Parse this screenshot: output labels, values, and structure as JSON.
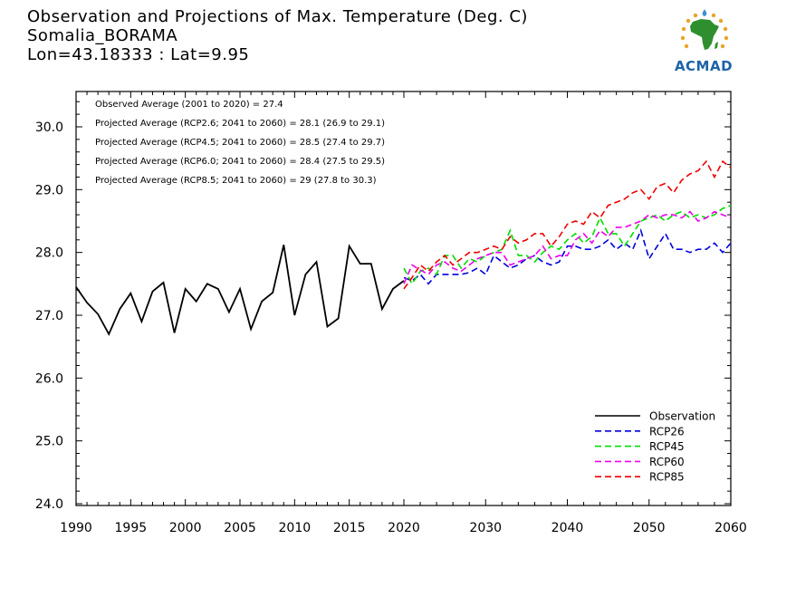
{
  "title_lines": [
    "Observation and Projections of Max. Temperature (Deg. C)",
    "Somalia_BORAMA",
    "Lon=43.18333 : Lat=9.95"
  ],
  "logo": {
    "text": "ACMAD",
    "icon": "africa-map-icon"
  },
  "annotations": [
    "Observed Average (2001 to 2020) = 27.4",
    "Projected Average (RCP2.6; 2041 to 2060) = 28.1 (26.9 to 29.1)",
    "Projected Average (RCP4.5; 2041 to 2060) = 28.5 (27.4 to 29.7)",
    "Projected Average (RCP6.0; 2041 to 2060) = 28.4 (27.5 to 29.5)",
    "Projected Average (RCP8.5; 2041 to 2060) = 29 (27.8 to 30.3)"
  ],
  "chart_data": {
    "type": "line",
    "title": "Observation and Projections of Max. Temperature (Deg. C)",
    "xlim": [
      1990,
      2060
    ],
    "ylim": [
      24.0,
      30.6
    ],
    "x_ticks": [
      1990,
      1995,
      2000,
      2005,
      2010,
      2015,
      2020,
      2030,
      2040,
      2050,
      2060
    ],
    "y_ticks": [
      24.0,
      25.0,
      26.0,
      27.0,
      28.0,
      29.0,
      30.0
    ],
    "y_tick_labels": [
      "24.0",
      "25.0",
      "26.0",
      "27.0",
      "28.0",
      "29.0",
      "30.0"
    ],
    "legend_position": "bottom-right",
    "series": [
      {
        "name": "Observation",
        "color": "#000000",
        "dash": false,
        "x": [
          1990,
          1991,
          1992,
          1993,
          1994,
          1995,
          1996,
          1997,
          1998,
          1999,
          2000,
          2001,
          2002,
          2003,
          2004,
          2005,
          2006,
          2007,
          2008,
          2009,
          2010,
          2011,
          2012,
          2013,
          2014,
          2015,
          2016,
          2017,
          2018,
          2019,
          2020
        ],
        "y": [
          27.45,
          27.2,
          27.02,
          26.7,
          27.1,
          27.35,
          26.9,
          27.38,
          27.52,
          26.72,
          27.42,
          27.22,
          27.5,
          27.42,
          27.05,
          27.42,
          26.78,
          27.22,
          27.36,
          28.12,
          27.0,
          27.65,
          27.85,
          26.82,
          26.95,
          28.1,
          27.82,
          27.82,
          27.1,
          27.42,
          27.55
        ]
      },
      {
        "name": "RCP26",
        "color": "#0000dd",
        "dash": true,
        "x": [
          2020,
          2021,
          2022,
          2023,
          2024,
          2025,
          2026,
          2027,
          2028,
          2029,
          2030,
          2031,
          2032,
          2033,
          2034,
          2035,
          2036,
          2037,
          2038,
          2039,
          2040,
          2041,
          2042,
          2043,
          2044,
          2045,
          2046,
          2047,
          2048,
          2049,
          2050,
          2051,
          2052,
          2053,
          2054,
          2055,
          2056,
          2057,
          2058,
          2059,
          2060
        ],
        "y": [
          27.6,
          27.55,
          27.65,
          27.5,
          27.65,
          27.65,
          27.65,
          27.65,
          27.68,
          27.75,
          27.65,
          27.95,
          27.85,
          27.75,
          27.8,
          27.9,
          27.95,
          27.85,
          27.8,
          27.85,
          28.1,
          28.1,
          28.05,
          28.05,
          28.1,
          28.2,
          28.05,
          28.15,
          28.05,
          28.35,
          27.9,
          28.1,
          28.3,
          28.05,
          28.05,
          28.0,
          28.05,
          28.05,
          28.15,
          28.0,
          28.15
        ]
      },
      {
        "name": "RCP45",
        "color": "#00dd00",
        "dash": true,
        "x": [
          2020,
          2021,
          2022,
          2023,
          2024,
          2025,
          2026,
          2027,
          2028,
          2029,
          2030,
          2031,
          2032,
          2033,
          2034,
          2035,
          2036,
          2037,
          2038,
          2039,
          2040,
          2041,
          2042,
          2043,
          2044,
          2045,
          2046,
          2047,
          2048,
          2049,
          2050,
          2051,
          2052,
          2053,
          2054,
          2055,
          2056,
          2057,
          2058,
          2059,
          2060
        ],
        "y": [
          27.75,
          27.5,
          27.7,
          27.75,
          27.65,
          27.95,
          27.95,
          27.75,
          27.9,
          27.85,
          27.95,
          28.0,
          28.05,
          28.35,
          27.95,
          27.95,
          27.85,
          28.0,
          28.1,
          28.05,
          28.2,
          28.3,
          28.15,
          28.25,
          28.55,
          28.3,
          28.3,
          28.1,
          28.3,
          28.5,
          28.55,
          28.6,
          28.5,
          28.6,
          28.65,
          28.55,
          28.6,
          28.55,
          28.6,
          28.7,
          28.75
        ]
      },
      {
        "name": "RCP60",
        "color": "#ee00ee",
        "dash": true,
        "x": [
          2020,
          2021,
          2022,
          2023,
          2024,
          2025,
          2026,
          2027,
          2028,
          2029,
          2030,
          2031,
          2032,
          2033,
          2034,
          2035,
          2036,
          2037,
          2038,
          2039,
          2040,
          2041,
          2042,
          2043,
          2044,
          2045,
          2046,
          2047,
          2048,
          2049,
          2050,
          2051,
          2052,
          2053,
          2054,
          2055,
          2056,
          2057,
          2058,
          2059,
          2060
        ],
        "y": [
          27.5,
          27.8,
          27.72,
          27.65,
          27.8,
          27.85,
          27.75,
          27.7,
          27.8,
          27.9,
          27.95,
          28.0,
          28.0,
          27.8,
          27.85,
          27.9,
          27.95,
          28.1,
          27.9,
          27.95,
          27.95,
          28.2,
          28.3,
          28.15,
          28.35,
          28.25,
          28.4,
          28.4,
          28.45,
          28.5,
          28.6,
          28.55,
          28.6,
          28.6,
          28.55,
          28.65,
          28.5,
          28.55,
          28.65,
          28.6,
          28.55
        ]
      },
      {
        "name": "RCP85",
        "color": "#ee0000",
        "dash": true,
        "x": [
          2020,
          2021,
          2022,
          2023,
          2024,
          2025,
          2026,
          2027,
          2028,
          2029,
          2030,
          2031,
          2032,
          2033,
          2034,
          2035,
          2036,
          2037,
          2038,
          2039,
          2040,
          2041,
          2042,
          2043,
          2044,
          2045,
          2046,
          2047,
          2048,
          2049,
          2050,
          2051,
          2052,
          2053,
          2054,
          2055,
          2056,
          2057,
          2058,
          2059,
          2060
        ],
        "y": [
          27.42,
          27.6,
          27.8,
          27.7,
          27.85,
          27.95,
          27.8,
          27.9,
          28.0,
          28.0,
          28.05,
          28.1,
          28.05,
          28.25,
          28.15,
          28.2,
          28.3,
          28.3,
          28.1,
          28.25,
          28.45,
          28.5,
          28.45,
          28.65,
          28.55,
          28.75,
          28.8,
          28.85,
          28.95,
          29.0,
          28.85,
          29.05,
          29.1,
          28.95,
          29.15,
          29.25,
          29.3,
          29.45,
          29.2,
          29.45,
          29.35
        ]
      }
    ]
  }
}
